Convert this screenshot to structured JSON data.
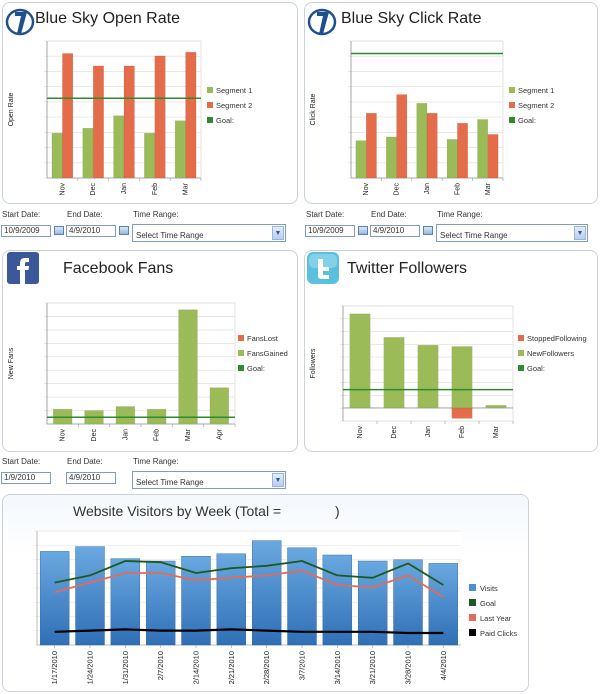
{
  "controls": [
    {
      "start_label": "Start Date:",
      "start_value": "10/9/2009",
      "end_label": "End Date:",
      "end_value": "4/9/2010",
      "range_label": "Time Range:",
      "range_value": "Select Time Range"
    },
    {
      "start_label": "Start Date:",
      "start_value": "10/9/2009",
      "end_label": "End Date:",
      "end_value": "4/9/2010",
      "range_label": "Time Range:",
      "range_value": "Select Time Range"
    },
    {
      "start_label": "Start Date:",
      "start_value": "1/9/2010",
      "end_label": "End Date:",
      "end_value": "4/9/2010",
      "range_label": "Time Range:",
      "range_value": "Select Time Range"
    }
  ],
  "chart_data": [
    {
      "type": "bar",
      "title": "Blue Sky Open Rate",
      "ylabel": "Open Rate",
      "categories": [
        "Nov",
        "Dec",
        "Jan",
        "Feb",
        "Mar"
      ],
      "series": [
        {
          "name": "Segment 1",
          "values": [
            36,
            40,
            50,
            36,
            46
          ]
        },
        {
          "name": "Segment 2",
          "values": [
            100,
            90,
            90,
            98,
            101
          ]
        }
      ],
      "goal": {
        "name": "Goal:",
        "value": 64
      },
      "ylim": [
        0,
        110
      ],
      "grid": true,
      "legend": "right",
      "colors": {
        "Segment 1": "#9bbb59",
        "Segment 2": "#e46c4a",
        "Goal:": "#2e8b2e"
      }
    },
    {
      "type": "bar",
      "title": "Blue Sky Click Rate",
      "ylabel": "Click Rate",
      "categories": [
        "Nov",
        "Dec",
        "Jan",
        "Feb",
        "Mar"
      ],
      "series": [
        {
          "name": "Segment 1",
          "values": [
            30,
            33,
            60,
            31,
            47
          ]
        },
        {
          "name": "Segment 2",
          "values": [
            52,
            67,
            52,
            44,
            35
          ]
        }
      ],
      "goal": {
        "name": "Goal:",
        "value": 100
      },
      "ylim": [
        0,
        110
      ],
      "grid": true,
      "legend": "right",
      "colors": {
        "Segment 1": "#9bbb59",
        "Segment 2": "#e46c4a",
        "Goal:": "#2e8b2e"
      }
    },
    {
      "type": "bar",
      "title": "Facebook Fans",
      "ylabel": "New Fans",
      "categories": [
        "Nov",
        "Dec",
        "Jan",
        "Feb",
        "Mar",
        "Apr"
      ],
      "series": [
        {
          "name": "FansLost",
          "values": [
            0,
            0,
            0,
            0,
            0,
            0
          ]
        },
        {
          "name": "FansGained",
          "values": [
            11,
            10,
            13,
            11,
            85,
            27
          ]
        }
      ],
      "goal": {
        "name": "Goal:",
        "value": 5
      },
      "ylim": [
        0,
        90
      ],
      "grid": true,
      "legend": "right",
      "colors": {
        "FansLost": "#e46c4a",
        "FansGained": "#9bbb59",
        "Goal:": "#2e8b2e"
      }
    },
    {
      "type": "bar",
      "title": "Twitter Followers",
      "ylabel": "Followers",
      "categories": [
        "Nov",
        "Dec",
        "Jan",
        "Feb",
        "Mar"
      ],
      "series": [
        {
          "name": "StoppedFollowing",
          "values": [
            0,
            0,
            0,
            -8,
            0
          ]
        },
        {
          "name": "NewFollowers",
          "values": [
            72,
            54,
            48,
            47,
            2
          ]
        }
      ],
      "goal": {
        "name": "Goal:",
        "value": 14
      },
      "ylim": [
        -10,
        78
      ],
      "grid": true,
      "legend": "right",
      "colors": {
        "StoppedFollowing": "#e46c4a",
        "NewFollowers": "#9bbb59",
        "Goal:": "#2e8b2e"
      }
    },
    {
      "type": "bar",
      "title": "Website Visitors by Week (Total = ",
      "title_suffix": ")",
      "categories": [
        "1/17/2010",
        "1/24/2010",
        "1/31/2010",
        "2/7/2010",
        "2/14/2010",
        "2/21/2010",
        "2/28/2010",
        "3/7/2010",
        "3/14/2010",
        "3/21/2010",
        "3/28/2010",
        "4/4/2010"
      ],
      "series": [
        {
          "name": "Visits",
          "kind": "bar",
          "values": [
            78,
            82,
            72,
            70,
            74,
            76,
            87,
            81,
            75,
            70,
            71,
            68
          ]
        },
        {
          "name": "Goal",
          "kind": "line",
          "values": [
            52,
            58,
            70,
            69,
            60,
            64,
            66,
            70,
            58,
            56,
            68,
            50
          ]
        },
        {
          "name": "Last Year",
          "kind": "line",
          "values": [
            44,
            52,
            60,
            60,
            54,
            56,
            58,
            62,
            50,
            48,
            58,
            40
          ]
        },
        {
          "name": "Paid Clicks",
          "kind": "line",
          "values": [
            11,
            12,
            13,
            12,
            12,
            13,
            12,
            11,
            11,
            11,
            10,
            10
          ]
        }
      ],
      "ylim": [
        0,
        95
      ],
      "grid": true,
      "legend": "right",
      "colors": {
        "Visits": "#4a8fd0",
        "Goal": "#1e5a1e",
        "Last Year": "#e06c5a",
        "Paid Clicks": "#000000"
      }
    }
  ]
}
